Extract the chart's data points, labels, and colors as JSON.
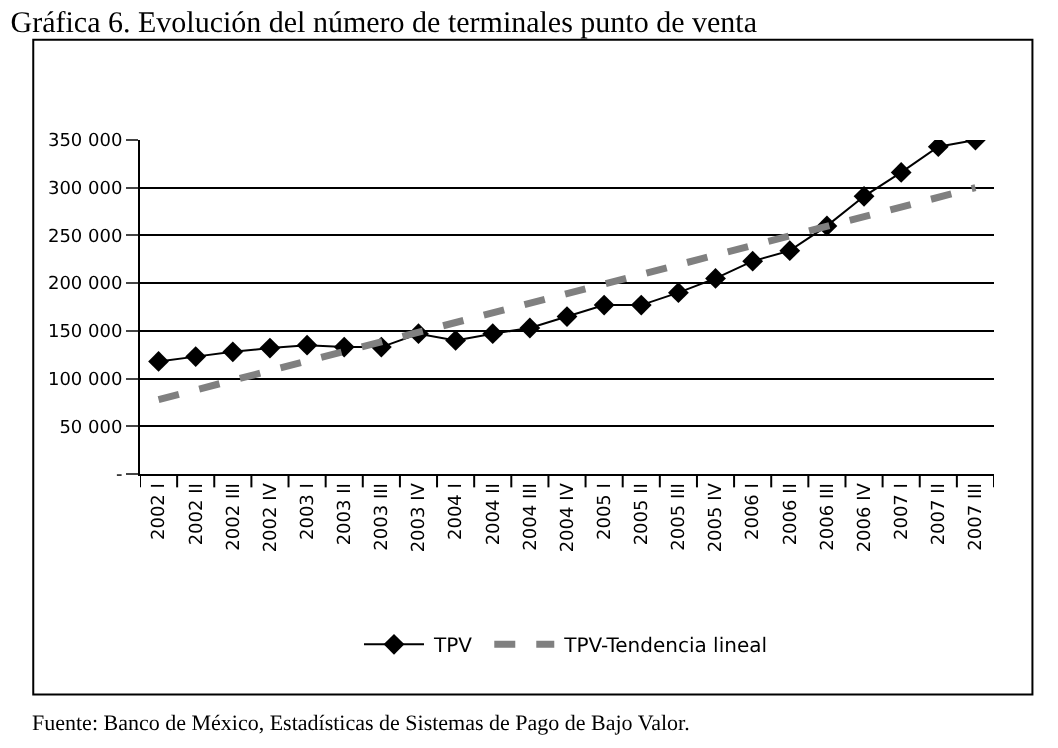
{
  "chart_data": {
    "type": "line",
    "title": "Gráfica 6. Evolución del número de terminales punto de venta",
    "categories": [
      "2002 I",
      "2002 II",
      "2002 III",
      "2002 IV",
      "2003 I",
      "2003 II",
      "2003 III",
      "2003 IV",
      "2004 I",
      "2004 II",
      "2004 III",
      "2004 IV",
      "2005 I",
      "2005 II",
      "2005 III",
      "2005 IV",
      "2006 I",
      "2006 II",
      "2006 III",
      "2006 IV",
      "2007 I",
      "2007 II",
      "2007 III"
    ],
    "series": [
      {
        "name": "TPV",
        "color": "#000000",
        "marker": "diamond",
        "line_style": "solid",
        "values": [
          118000,
          123000,
          128000,
          132000,
          135000,
          133000,
          133000,
          147000,
          140000,
          147000,
          153000,
          165000,
          177000,
          177000,
          190000,
          205000,
          223000,
          234000,
          260000,
          291000,
          316000,
          343000,
          350000
        ]
      },
      {
        "name": "TPV-Tendencia lineal",
        "color": "#808080",
        "marker": "none",
        "line_style": "dashed",
        "values": [
          78000,
          null,
          null,
          null,
          null,
          null,
          null,
          null,
          null,
          null,
          null,
          null,
          null,
          null,
          null,
          null,
          null,
          null,
          null,
          null,
          null,
          null,
          300000
        ]
      }
    ],
    "ylim": [
      0,
      350000
    ],
    "yticks": [
      {
        "value": 0,
        "label": "-"
      },
      {
        "value": 50000,
        "label": "50 000"
      },
      {
        "value": 100000,
        "label": "100 000"
      },
      {
        "value": 150000,
        "label": "150 000"
      },
      {
        "value": 200000,
        "label": "200 000"
      },
      {
        "value": 250000,
        "label": "250 000"
      },
      {
        "value": 300000,
        "label": "300 000"
      },
      {
        "value": 350000,
        "label": "350 000"
      }
    ],
    "grid": "y",
    "legend": "bottom",
    "annotations": [
      "Fuente: Banco de México, Estadísticas de Sistemas de Pago de Bajo Valor."
    ]
  }
}
